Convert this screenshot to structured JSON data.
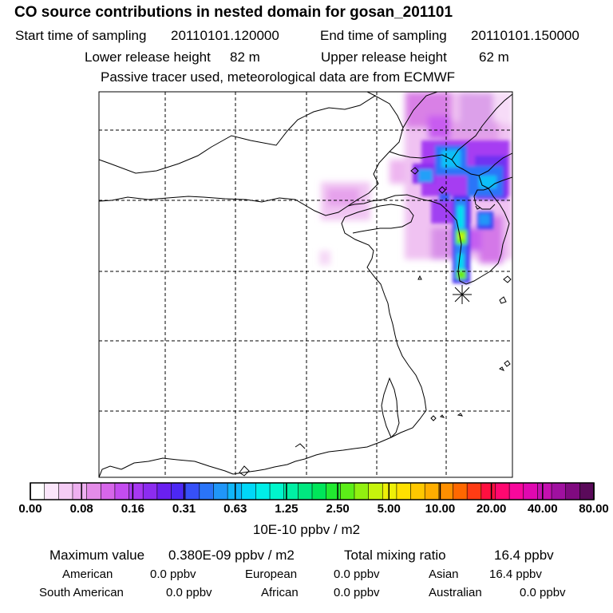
{
  "header": {
    "title": "CO  source contributions in nested domain for gosan_201101",
    "start_label": "Start time of sampling",
    "start_value": "20110101.120000",
    "end_label": "End time of sampling",
    "end_value": "20110101.150000",
    "lower_label": "Lower release height",
    "lower_value": "82 m",
    "upper_label": "Upper release height",
    "upper_value": "62 m",
    "note": "Passive tracer used, meteorological data are from ECMWF"
  },
  "colorbar": {
    "ticks": [
      "0.00",
      "0.08",
      "0.16",
      "0.31",
      "0.63",
      "1.25",
      "2.50",
      "5.00",
      "10.00",
      "20.00",
      "40.00",
      "80.00"
    ],
    "units": "10E-10 ppbv / m2",
    "colors": [
      "#ffffff",
      "#fbe6fb",
      "#f5ccf5",
      "#eeb0f0",
      "#e48ce8",
      "#d766ea",
      "#c44cf0",
      "#a838f2",
      "#8c2cf0",
      "#6a20f0",
      "#4c28f4",
      "#3650f8",
      "#2a74f8",
      "#2096f8",
      "#10b6f8",
      "#00d8f8",
      "#00eee8",
      "#00f6cc",
      "#00f0a4",
      "#00e880",
      "#00e65a",
      "#22ea30",
      "#5cee18",
      "#92f010",
      "#c6f40c",
      "#eef008",
      "#ffe000",
      "#ffc800",
      "#ffae00",
      "#ff9000",
      "#ff6800",
      "#ff3c14",
      "#ff1040",
      "#ff0870",
      "#f8089c",
      "#e008b0",
      "#c410b0",
      "#a010a0",
      "#800a80",
      "#5a0a5a"
    ]
  },
  "footer": {
    "max_label": "Maximum value",
    "max_value": "0.380E-09 ppbv / m2",
    "total_label": "Total mixing ratio",
    "total_value": "16.4 ppbv",
    "regions": [
      {
        "name": "American",
        "value": "0.0 ppbv"
      },
      {
        "name": "European",
        "value": "0.0 ppbv"
      },
      {
        "name": "Asian",
        "value": "16.4 ppbv"
      },
      {
        "name": "South American",
        "value": "0.0 ppbv"
      },
      {
        "name": "African",
        "value": "0.0 ppbv"
      },
      {
        "name": "Australian",
        "value": "0.0 ppbv"
      }
    ]
  }
}
